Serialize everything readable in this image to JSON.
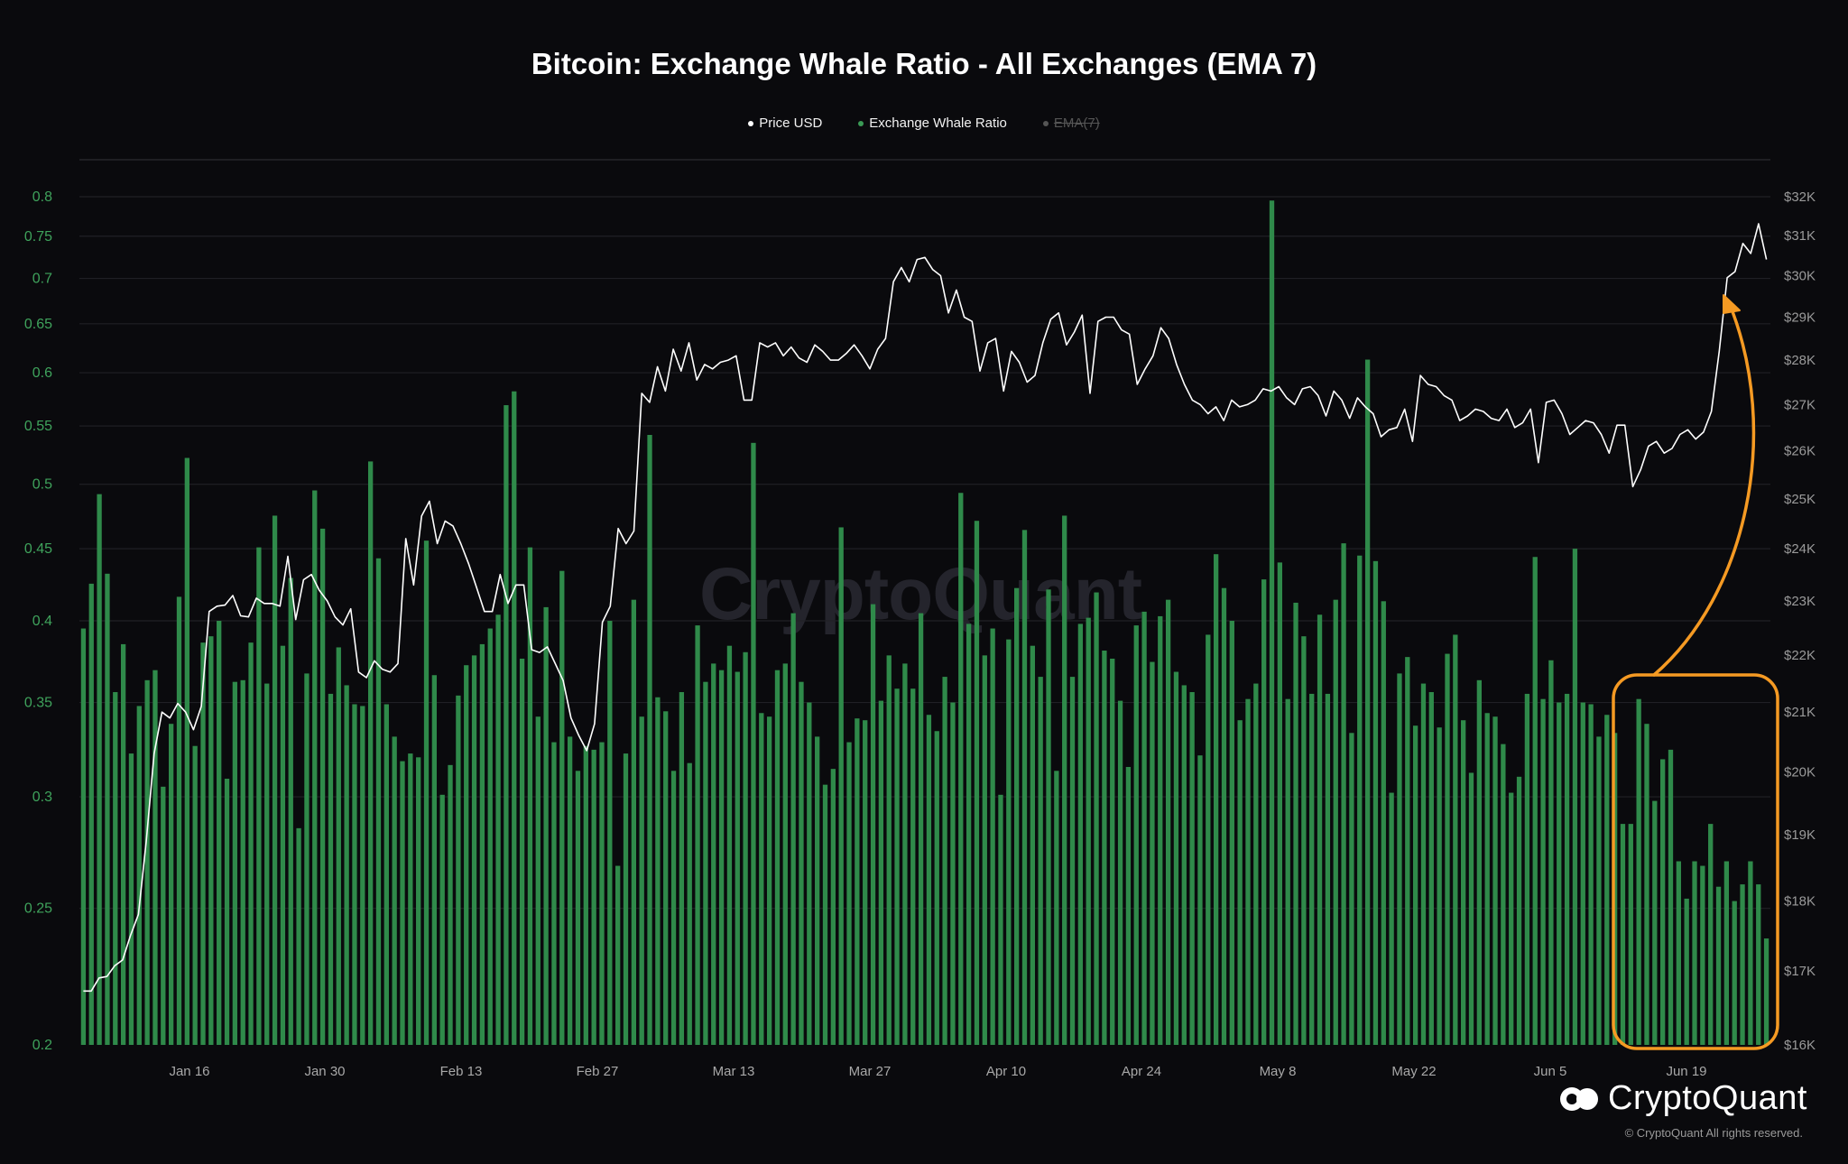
{
  "title": "Bitcoin: Exchange Whale Ratio - All Exchanges (EMA 7)",
  "watermark": "CryptoQuant",
  "brand": "CryptoQuant",
  "copyright": "© CryptoQuant All rights reserved.",
  "legend": [
    {
      "label": "Price USD",
      "color": "#ffffff",
      "active": true
    },
    {
      "label": "Exchange Whale Ratio",
      "color": "#3a9a55",
      "active": true
    },
    {
      "label": "EMA(7)",
      "color": "#555555",
      "active": false
    }
  ],
  "colors": {
    "background": "#0a0a0d",
    "bar": "#2f8a4a",
    "price_line": "#ffffff",
    "annotation": "#f59a23",
    "left_axis_text": "#3fa35c"
  },
  "chart_data": {
    "type": "bar",
    "title": "Bitcoin: Exchange Whale Ratio - All Exchanges (EMA 7)",
    "x_tick_labels": [
      "Jan 16",
      "Jan 30",
      "Feb 13",
      "Feb 27",
      "Mar 13",
      "Mar 27",
      "Apr 10",
      "Apr 24",
      "May 8",
      "May 22",
      "Jun 5",
      "Jun 19"
    ],
    "left_axis": {
      "series": "Exchange Whale Ratio",
      "scale": "log",
      "range": [
        0.2,
        0.8
      ],
      "ticks": [
        "0.2",
        "0.25",
        "0.3",
        "0.35",
        "0.4",
        "0.45",
        "0.5",
        "0.55",
        "0.6",
        "0.65",
        "0.7",
        "0.75",
        "0.8"
      ]
    },
    "right_axis": {
      "series": "Price USD",
      "scale": "log",
      "range": [
        16000,
        32000
      ],
      "ticks": [
        "$16K",
        "$17K",
        "$18K",
        "$19K",
        "$20K",
        "$21K",
        "$22K",
        "$23K",
        "$24K",
        "$25K",
        "$26K",
        "$27K",
        "$28K",
        "$29K",
        "$30K",
        "$31K",
        "$32K"
      ]
    },
    "series": [
      {
        "name": "Exchange Whale Ratio",
        "kind": "bar",
        "axis": "left",
        "values": [
          0.395,
          0.425,
          0.492,
          0.432,
          0.356,
          0.385,
          0.322,
          0.348,
          0.363,
          0.369,
          0.305,
          0.338,
          0.416,
          0.522,
          0.326,
          0.386,
          0.39,
          0.4,
          0.309,
          0.362,
          0.363,
          0.386,
          0.451,
          0.361,
          0.475,
          0.384,
          0.429,
          0.285,
          0.367,
          0.495,
          0.465,
          0.355,
          0.383,
          0.36,
          0.349,
          0.348,
          0.519,
          0.443,
          0.349,
          0.331,
          0.318,
          0.322,
          0.32,
          0.456,
          0.366,
          0.301,
          0.316,
          0.354,
          0.372,
          0.378,
          0.385,
          0.395,
          0.404,
          0.569,
          0.582,
          0.376,
          0.451,
          0.342,
          0.409,
          0.328,
          0.434,
          0.331,
          0.313,
          0.326,
          0.324,
          0.328,
          0.4,
          0.268,
          0.322,
          0.414,
          0.342,
          0.542,
          0.353,
          0.345,
          0.313,
          0.356,
          0.317,
          0.397,
          0.362,
          0.373,
          0.369,
          0.384,
          0.368,
          0.38,
          0.535,
          0.344,
          0.342,
          0.369,
          0.373,
          0.405,
          0.362,
          0.35,
          0.331,
          0.306,
          0.314,
          0.466,
          0.328,
          0.341,
          0.34,
          0.411,
          0.351,
          0.378,
          0.358,
          0.373,
          0.358,
          0.405,
          0.343,
          0.334,
          0.365,
          0.35,
          0.493,
          0.398,
          0.471,
          0.378,
          0.395,
          0.301,
          0.388,
          0.422,
          0.464,
          0.384,
          0.365,
          0.421,
          0.313,
          0.475,
          0.365,
          0.398,
          0.402,
          0.419,
          0.381,
          0.376,
          0.351,
          0.315,
          0.397,
          0.406,
          0.374,
          0.403,
          0.414,
          0.368,
          0.36,
          0.356,
          0.321,
          0.391,
          0.446,
          0.422,
          0.4,
          0.34,
          0.352,
          0.361,
          0.428,
          0.795,
          0.44,
          0.352,
          0.412,
          0.39,
          0.355,
          0.404,
          0.355,
          0.414,
          0.454,
          0.333,
          0.445,
          0.613,
          0.441,
          0.413,
          0.302,
          0.367,
          0.377,
          0.337,
          0.361,
          0.356,
          0.336,
          0.379,
          0.391,
          0.34,
          0.312,
          0.363,
          0.344,
          0.342,
          0.327,
          0.302,
          0.31,
          0.355,
          0.444,
          0.352,
          0.375,
          0.35,
          0.355,
          0.45,
          0.35,
          0.349,
          0.331,
          0.343,
          0.333,
          0.287,
          0.287,
          0.352,
          0.338,
          0.298,
          0.319,
          0.324,
          0.27,
          0.254,
          0.27,
          0.268,
          0.287,
          0.259,
          0.27,
          0.253,
          0.26,
          0.27,
          0.26,
          0.238
        ]
      },
      {
        "name": "Price USD",
        "kind": "line",
        "axis": "right",
        "values": [
          16720,
          16720,
          16900,
          16920,
          17070,
          17150,
          17500,
          17800,
          18900,
          20300,
          21000,
          20900,
          21150,
          21000,
          20700,
          21100,
          22800,
          22900,
          22920,
          23100,
          22720,
          22700,
          23050,
          22950,
          22950,
          22900,
          23850,
          22650,
          23400,
          23500,
          23200,
          23000,
          22700,
          22550,
          22850,
          21700,
          21600,
          21900,
          21750,
          21700,
          21850,
          24200,
          23300,
          24650,
          24950,
          24100,
          24550,
          24450,
          24100,
          23700,
          23250,
          22800,
          22800,
          23500,
          22950,
          23300,
          23300,
          22100,
          22050,
          22150,
          21850,
          21550,
          20900,
          20600,
          20350,
          20800,
          22600,
          22900,
          24400,
          24100,
          24350,
          27250,
          27050,
          27850,
          27300,
          28250,
          27750,
          28400,
          27550,
          27900,
          27800,
          27950,
          28000,
          28100,
          27100,
          27100,
          28400,
          28300,
          28400,
          28100,
          28300,
          28050,
          27950,
          28350,
          28200,
          28000,
          28000,
          28150,
          28350,
          28100,
          27800,
          28250,
          28500,
          29850,
          30200,
          29850,
          30400,
          30450,
          30150,
          30000,
          29100,
          29650,
          29000,
          28900,
          27750,
          28400,
          28500,
          27300,
          28200,
          27950,
          27500,
          27650,
          28400,
          28950,
          29100,
          28350,
          28650,
          29050,
          27250,
          28900,
          29000,
          29000,
          28700,
          28600,
          27450,
          27800,
          28100,
          28750,
          28500,
          27900,
          27450,
          27100,
          27000,
          26800,
          26950,
          26650,
          27100,
          26950,
          27000,
          27100,
          27350,
          27300,
          27400,
          27150,
          27000,
          27350,
          27400,
          27200,
          26750,
          27300,
          27100,
          26700,
          27150,
          26950,
          26800,
          26300,
          26450,
          26500,
          26900,
          26200,
          27650,
          27450,
          27400,
          27200,
          27100,
          26650,
          26750,
          26900,
          26850,
          26700,
          26650,
          26900,
          26500,
          26600,
          26900,
          25750,
          27050,
          27100,
          26800,
          26350,
          26500,
          26650,
          26600,
          26350,
          25950,
          26550,
          26550,
          25250,
          25600,
          26100,
          26200,
          25950,
          26050,
          26350,
          26450,
          26250,
          26400,
          26850,
          28200,
          29950,
          30100,
          30800,
          30550,
          31300,
          30400
        ]
      }
    ],
    "annotation": {
      "type": "rounded-rect-with-arrow",
      "color": "#f59a23"
    }
  }
}
